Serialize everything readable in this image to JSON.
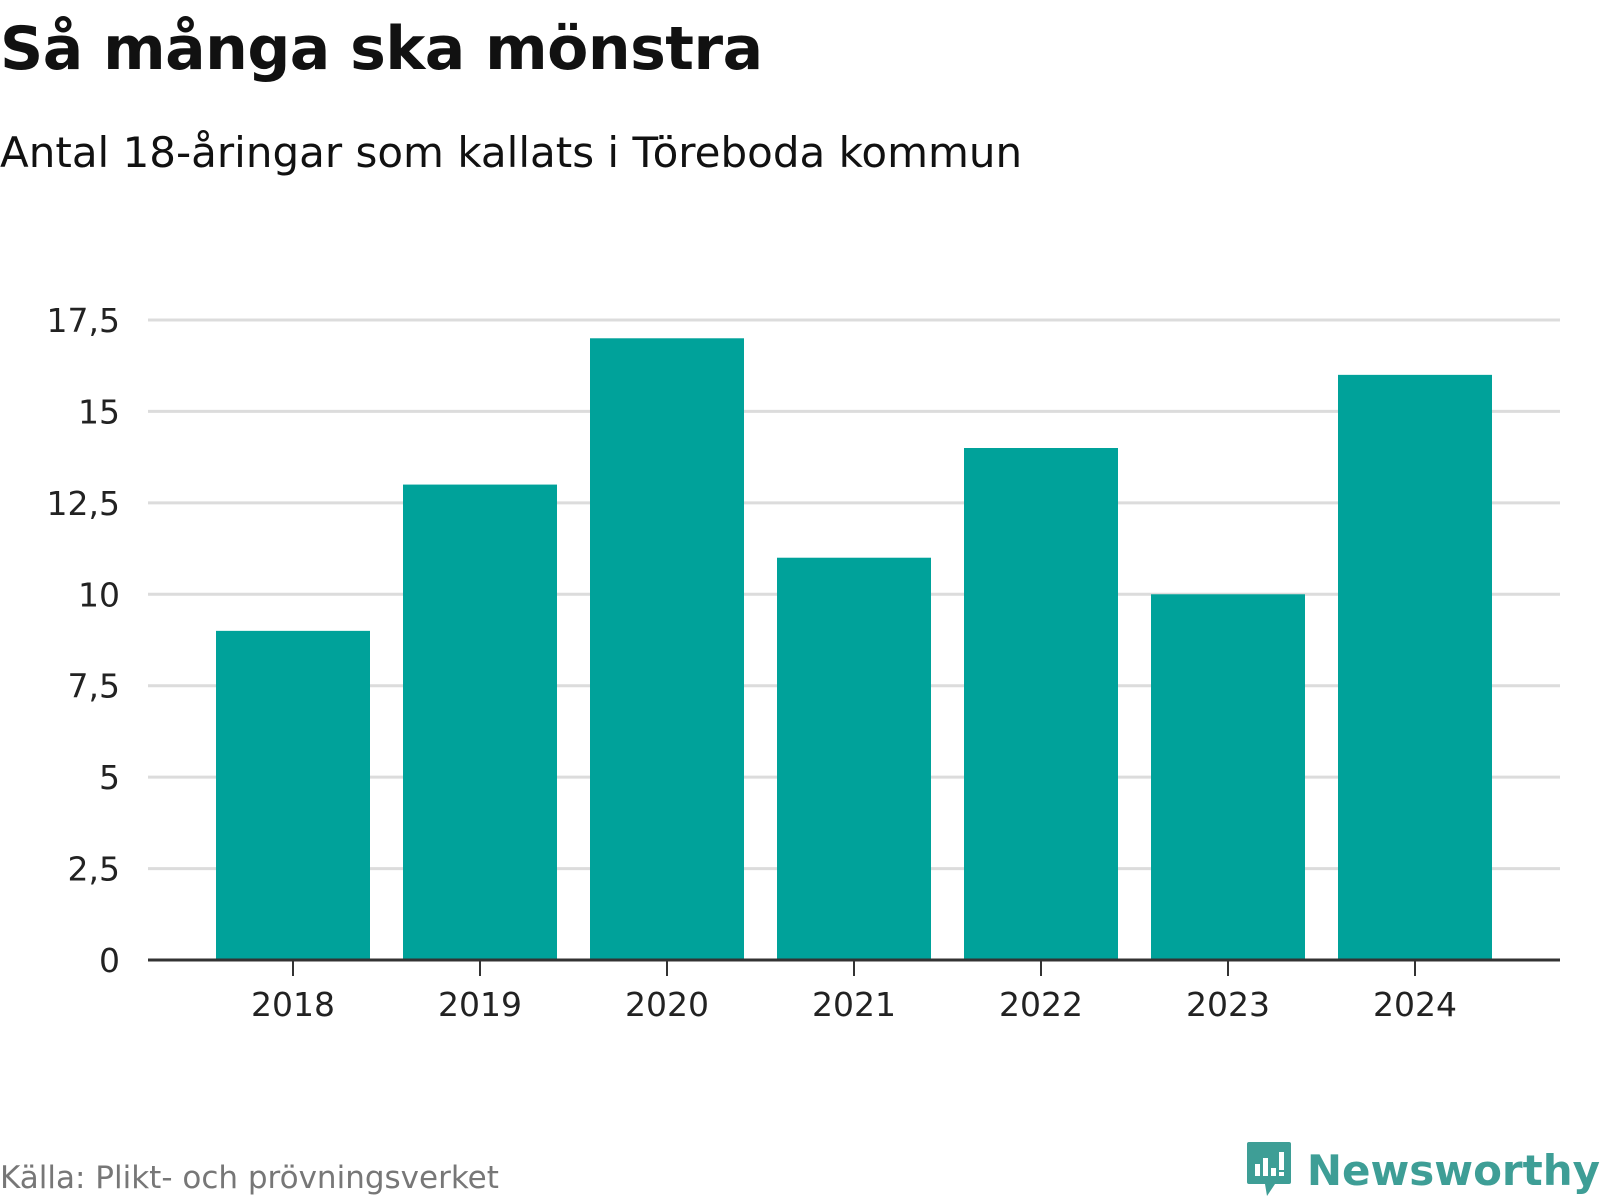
{
  "header": {
    "title": "Så många ska mönstra",
    "subtitle": "Antal 18-åringar som kallats i Töreboda kommun"
  },
  "footer": {
    "source": "Källa: Plikt- och prövningsverket",
    "brand": "Newsworthy",
    "brand_icon": "newsworthy-logo-icon"
  },
  "colors": {
    "bar": "#00a29a",
    "grid": "#dcdcdc",
    "axis": "#333333",
    "brand": "#3e9e96"
  },
  "chart_data": {
    "type": "bar",
    "title": "Så många ska mönstra",
    "subtitle": "Antal 18-åringar som kallats i Töreboda kommun",
    "xlabel": "",
    "ylabel": "",
    "categories": [
      "2018",
      "2019",
      "2020",
      "2021",
      "2022",
      "2023",
      "2024"
    ],
    "values": [
      9,
      13,
      17,
      11,
      14,
      10,
      16
    ],
    "ylim": [
      0,
      17.5
    ],
    "yticks": [
      0,
      2.5,
      5,
      7.5,
      10,
      12.5,
      15,
      17.5
    ],
    "ytick_labels": [
      "0",
      "2,5",
      "5",
      "7,5",
      "10",
      "12,5",
      "15",
      "17,5"
    ],
    "grid": true,
    "legend": "none"
  }
}
